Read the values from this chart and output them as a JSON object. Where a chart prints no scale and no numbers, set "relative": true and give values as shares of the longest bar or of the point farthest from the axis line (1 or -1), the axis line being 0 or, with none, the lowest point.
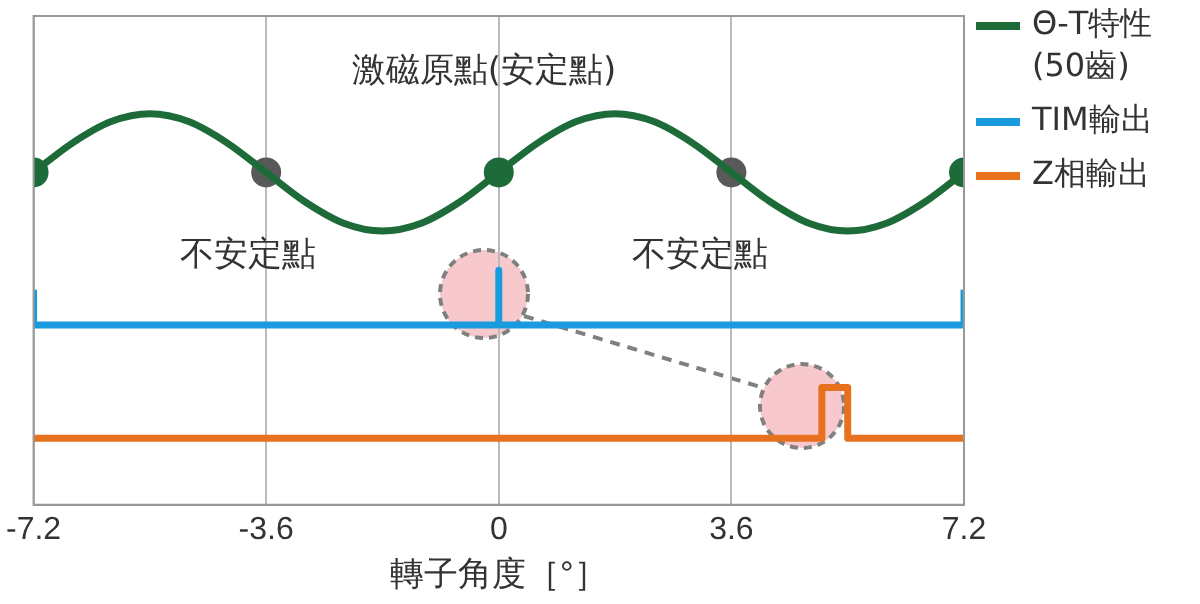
{
  "chart_data": {
    "type": "line",
    "relative": true,
    "xlabel": "轉子角度［°］",
    "xlim": [
      -7.2,
      7.2
    ],
    "xticks": [
      -7.2,
      -3.6,
      0,
      3.6,
      7.2
    ],
    "grid": "x",
    "legend": "right",
    "series": [
      {
        "name": "Θ-T特性(50齒)",
        "color": "#1e6b3a",
        "x": [
          -7.2,
          -6.6,
          -6,
          -5.4,
          -4.8,
          -4.2,
          -3.6,
          -3,
          -2.4,
          -1.8,
          -1.2,
          -0.6,
          0,
          0.6,
          1.2,
          1.8,
          2.4,
          3,
          3.6,
          4.2,
          4.8,
          5.4,
          6,
          6.6,
          7.2
        ],
        "values": [
          0.85,
          0.925,
          0.98,
          1,
          0.98,
          0.925,
          0.85,
          0.775,
          0.72,
          0.7,
          0.72,
          0.775,
          0.85,
          0.925,
          0.98,
          1,
          0.98,
          0.925,
          0.85,
          0.775,
          0.72,
          0.7,
          0.72,
          0.775,
          0.85
        ]
      },
      {
        "type": "scatter",
        "colors": [
          "#1e6b3a",
          "#595959",
          "#1e6b3a",
          "#595959",
          "#1e6b3a"
        ],
        "x": [
          -7.2,
          -3.6,
          0,
          3.6,
          7.2
        ],
        "values": [
          0.85,
          0.85,
          0.85,
          0.85,
          0.85
        ]
      },
      {
        "name": "TIM輸出",
        "color": "#1a9be0",
        "x": [
          -7.2,
          -7.2,
          0,
          0,
          0,
          7.2,
          7.2
        ],
        "values": [
          0.55,
          0.46,
          0.46,
          0.6,
          0.46,
          0.46,
          0.55
        ]
      },
      {
        "name": "Z相輸出",
        "color": "#e8711e",
        "x": [
          -7.2,
          5,
          5,
          5.4,
          5.4,
          7.2
        ],
        "values": [
          0.17,
          0.17,
          0.3,
          0.3,
          0.17,
          0.17
        ]
      }
    ],
    "annotations": [
      "激磁原點(安定點)",
      "不安定點",
      "不安定點"
    ]
  }
}
